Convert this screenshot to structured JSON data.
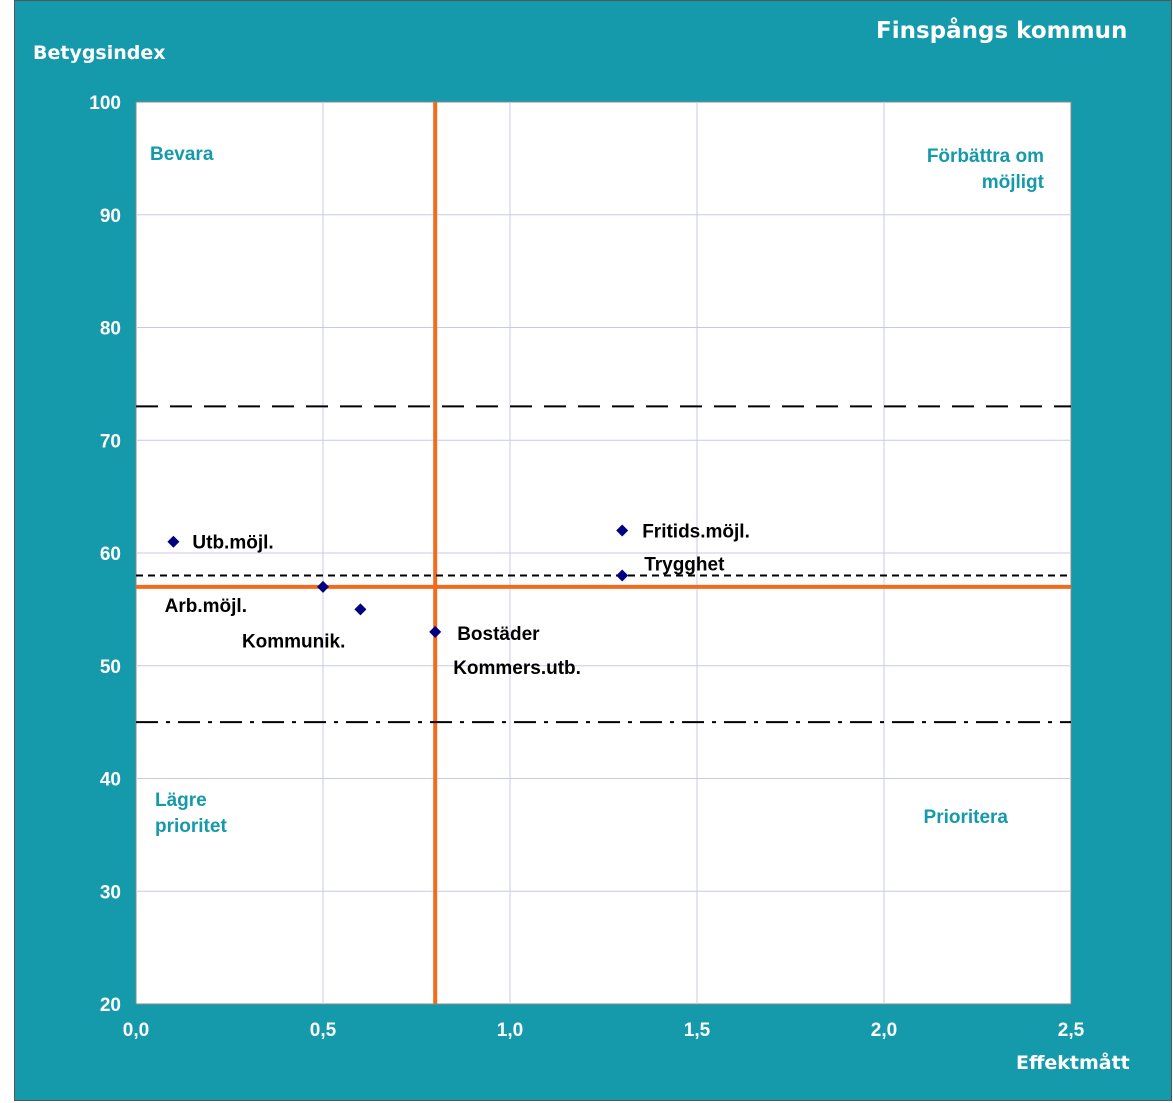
{
  "chart_data": {
    "type": "scatter",
    "title": "Finspångs kommun",
    "xlabel": "Effektmått",
    "ylabel": "Betygsindex",
    "xlim": [
      0,
      2.5
    ],
    "ylim": [
      20,
      100
    ],
    "x_ticks": [
      "0,0",
      "0,5",
      "1,0",
      "1,5",
      "2,0",
      "2,5"
    ],
    "y_ticks": [
      "20",
      "30",
      "40",
      "50",
      "60",
      "70",
      "80",
      "90",
      "100"
    ],
    "grid": true,
    "points": [
      {
        "label": "Utb.möjl.",
        "x": 0.1,
        "y": 61
      },
      {
        "label": "Arb.möjl.",
        "x": 0.5,
        "y": 57
      },
      {
        "label": "Kommunik.",
        "x": 0.6,
        "y": 55
      },
      {
        "label": "Bostäder",
        "x": 0.8,
        "y": 53
      },
      {
        "label": "Kommers.utb.",
        "x": 0.8,
        "y": 53
      },
      {
        "label": "Fritids.möjl.",
        "x": 1.3,
        "y": 62
      },
      {
        "label": "Trygghet",
        "x": 1.3,
        "y": 58
      }
    ],
    "reference_lines": [
      {
        "orientation": "vertical",
        "value": 0.8,
        "style": "solid",
        "color": "#f26b1d"
      },
      {
        "orientation": "horizontal",
        "value": 57,
        "style": "solid",
        "color": "#f26b1d"
      },
      {
        "orientation": "horizontal",
        "value": 73,
        "style": "long-dash",
        "color": "#000000"
      },
      {
        "orientation": "horizontal",
        "value": 58,
        "style": "short-dash",
        "color": "#000000"
      },
      {
        "orientation": "horizontal",
        "value": 45,
        "style": "dash-dot",
        "color": "#000000"
      }
    ],
    "quadrant_labels": {
      "top_left": [
        "Bevara"
      ],
      "top_right": [
        "Förbättra om",
        "möjligt"
      ],
      "bottom_left": [
        "Lägre",
        "prioritet"
      ],
      "bottom_right": [
        "Prioritera"
      ]
    },
    "colors": {
      "background": "#149aab",
      "plot_area": "#ffffff",
      "marker": "#000080",
      "quadrant_text": "#149aab"
    }
  }
}
